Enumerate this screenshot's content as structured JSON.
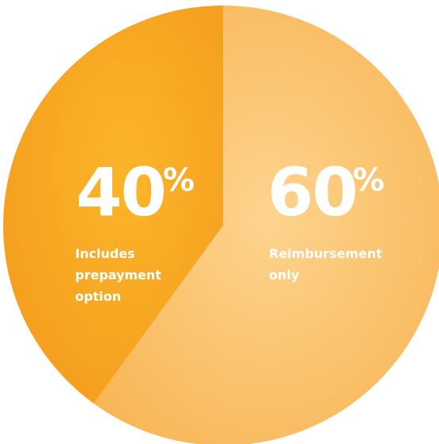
{
  "chart_data": {
    "type": "pie",
    "slices": [
      {
        "value": 40,
        "display_number": "40",
        "display_unit": "%",
        "label_lines": [
          "Includes",
          "prepayment",
          "option"
        ],
        "color_light": "#fbb529",
        "color_dark": "#f39a1d"
      },
      {
        "value": 60,
        "display_number": "60",
        "display_unit": "%",
        "label_lines": [
          "Reimbursement",
          "only"
        ],
        "color_light": "#fdd48f",
        "color_dark": "#f8b350"
      }
    ]
  }
}
